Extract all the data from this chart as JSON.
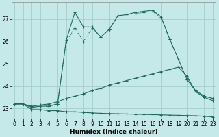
{
  "xlabel": "Humidex (Indice chaleur)",
  "bg_color": "#c5e8e8",
  "grid_color": "#9fc8c8",
  "line_color": "#1a6b5a",
  "xlim": [
    -0.3,
    23.3
  ],
  "ylim": [
    22.55,
    27.75
  ],
  "yticks": [
    23,
    24,
    25,
    26,
    27
  ],
  "xticks": [
    0,
    1,
    2,
    3,
    4,
    5,
    6,
    7,
    8,
    9,
    10,
    11,
    12,
    13,
    14,
    15,
    16,
    17,
    18,
    19,
    20,
    21,
    22,
    23
  ],
  "line_bottom_x": [
    0,
    1,
    2,
    3,
    4,
    5,
    6,
    7,
    8,
    9,
    10,
    11,
    12,
    13,
    14,
    15,
    16,
    17,
    18,
    19,
    20,
    21,
    22,
    23
  ],
  "line_bottom_y": [
    23.2,
    23.2,
    22.95,
    22.95,
    22.9,
    22.9,
    22.85,
    22.85,
    22.82,
    22.8,
    22.78,
    22.77,
    22.76,
    22.75,
    22.74,
    22.73,
    22.72,
    22.71,
    22.7,
    22.69,
    22.68,
    22.67,
    22.65,
    22.62
  ],
  "line_mid_x": [
    0,
    1,
    2,
    3,
    4,
    5,
    6,
    7,
    8,
    9,
    10,
    11,
    12,
    13,
    14,
    15,
    16,
    17,
    18,
    19,
    20,
    21,
    22,
    23
  ],
  "line_mid_y": [
    23.2,
    23.2,
    23.1,
    23.15,
    23.2,
    23.3,
    23.45,
    23.55,
    23.65,
    23.8,
    23.9,
    24.05,
    24.15,
    24.25,
    24.35,
    24.45,
    24.55,
    24.65,
    24.75,
    24.85,
    24.45,
    23.75,
    23.5,
    23.35
  ],
  "line_dotted_x": [
    0,
    1,
    2,
    3,
    4,
    5,
    6,
    7,
    8,
    9,
    10,
    11,
    12,
    13,
    14,
    15,
    16,
    17,
    18,
    19,
    20,
    21,
    22,
    23
  ],
  "line_dotted_y": [
    23.2,
    23.2,
    23.05,
    23.1,
    23.1,
    23.2,
    26.0,
    26.6,
    26.0,
    26.6,
    26.2,
    26.55,
    27.15,
    27.2,
    27.25,
    27.3,
    27.35,
    27.05,
    26.1,
    25.2,
    24.3,
    23.8,
    23.55,
    23.45
  ],
  "line_top_x": [
    0,
    1,
    2,
    3,
    4,
    5,
    6,
    7,
    8,
    9,
    10,
    11,
    12,
    13,
    14,
    15,
    16,
    17,
    18,
    19,
    20,
    21,
    22,
    23
  ],
  "line_top_y": [
    23.2,
    23.2,
    23.05,
    23.1,
    23.1,
    23.2,
    26.05,
    27.3,
    26.65,
    26.65,
    26.2,
    26.55,
    27.15,
    27.2,
    27.3,
    27.35,
    27.4,
    27.1,
    26.1,
    25.2,
    24.3,
    23.8,
    23.55,
    23.45
  ]
}
